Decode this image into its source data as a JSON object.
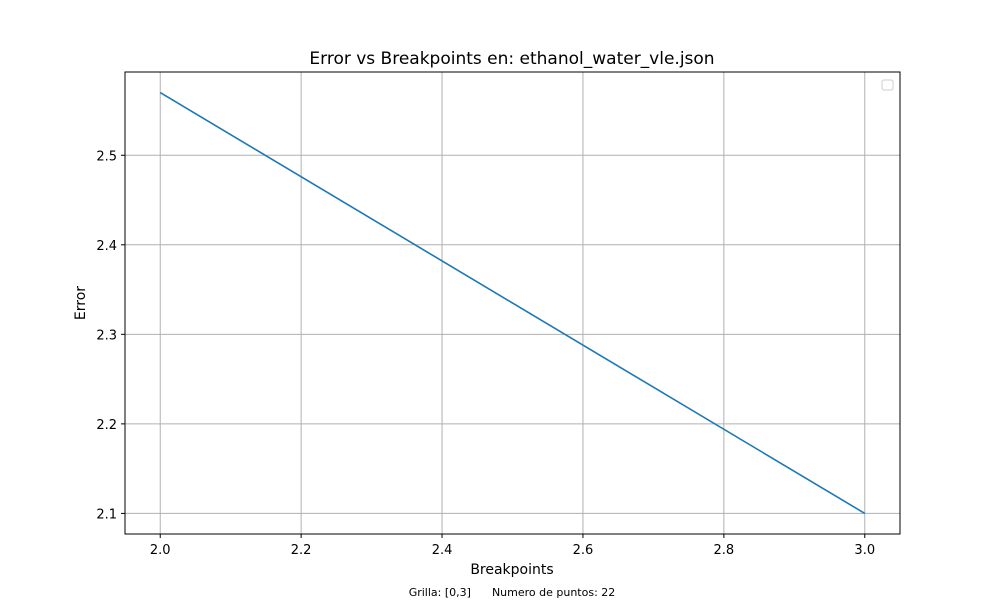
{
  "chart_data": {
    "type": "line",
    "title": "Error vs Breakpoints en: ethanol_water_vle.json",
    "xlabel": "Breakpoints",
    "ylabel": "Error",
    "x_ticks": [
      "2.0",
      "2.2",
      "2.4",
      "2.6",
      "2.8",
      "3.0"
    ],
    "y_ticks": [
      "2.1",
      "2.2",
      "2.3",
      "2.4",
      "2.5"
    ],
    "xlim": [
      1.95,
      3.05
    ],
    "ylim": [
      2.077,
      2.593
    ],
    "grid": true,
    "legend": "top-right (empty)",
    "series": [
      {
        "x": [
          2.0,
          3.0
        ],
        "y": [
          2.57,
          2.1
        ],
        "color": "#1f77b4"
      }
    ]
  },
  "footer": {
    "grilla": "Grilla: [0,3]",
    "puntos": "Numero de puntos: 22"
  }
}
